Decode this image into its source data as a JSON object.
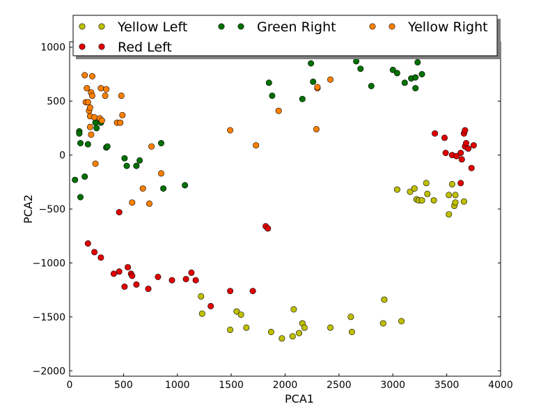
{
  "chart_data": {
    "type": "scatter",
    "title": "",
    "xlabel": "PCA1",
    "ylabel": "PCA2",
    "xlim": [
      0,
      4000
    ],
    "ylim": [
      -2050,
      1050
    ],
    "xticks": [
      0,
      500,
      1000,
      1500,
      2000,
      2500,
      3000,
      3500,
      4000
    ],
    "yticks": [
      -2000,
      -1500,
      -1000,
      -500,
      0,
      500,
      1000
    ],
    "xtick_labels": [
      "0",
      "500",
      "1000",
      "1500",
      "2000",
      "2500",
      "3000",
      "3500",
      "4000"
    ],
    "ytick_labels": [
      "−2000",
      "−1500",
      "−1000",
      "−500",
      "0",
      "500",
      "1000"
    ],
    "grid": false,
    "legend_placement": "top",
    "series": [
      {
        "name": "Yellow Left",
        "color": "#bfbf00",
        "points": [
          [
            1220,
            -1310
          ],
          [
            1230,
            -1470
          ],
          [
            1490,
            -1620
          ],
          [
            1550,
            -1450
          ],
          [
            1590,
            -1480
          ],
          [
            1640,
            -1600
          ],
          [
            1870,
            -1640
          ],
          [
            1970,
            -1700
          ],
          [
            2070,
            -1680
          ],
          [
            2080,
            -1430
          ],
          [
            2130,
            -1650
          ],
          [
            2160,
            -1560
          ],
          [
            2180,
            -1600
          ],
          [
            2420,
            -1600
          ],
          [
            2610,
            -1500
          ],
          [
            2620,
            -1640
          ],
          [
            2910,
            -1560
          ],
          [
            2920,
            -1340
          ],
          [
            3080,
            -1540
          ],
          [
            3040,
            -320
          ],
          [
            3160,
            -340
          ],
          [
            3200,
            -310
          ],
          [
            3220,
            -410
          ],
          [
            3240,
            -420
          ],
          [
            3270,
            -420
          ],
          [
            3310,
            -260
          ],
          [
            3320,
            -360
          ],
          [
            3380,
            -420
          ],
          [
            3520,
            -550
          ],
          [
            3520,
            -370
          ],
          [
            3550,
            -270
          ],
          [
            3570,
            -470
          ],
          [
            3580,
            -370
          ],
          [
            3580,
            -440
          ],
          [
            3660,
            -430
          ]
        ]
      },
      {
        "name": "Red Left",
        "color": "#e00000",
        "points": [
          [
            170,
            -820
          ],
          [
            230,
            -900
          ],
          [
            290,
            -950
          ],
          [
            410,
            -1100
          ],
          [
            460,
            -1080
          ],
          [
            460,
            -530
          ],
          [
            510,
            -1220
          ],
          [
            540,
            -1040
          ],
          [
            570,
            -1100
          ],
          [
            580,
            -1120
          ],
          [
            620,
            -1200
          ],
          [
            730,
            -1240
          ],
          [
            820,
            -1130
          ],
          [
            950,
            -1160
          ],
          [
            1080,
            -1150
          ],
          [
            1130,
            -1090
          ],
          [
            1170,
            -1160
          ],
          [
            1310,
            -1400
          ],
          [
            1490,
            -1260
          ],
          [
            1700,
            -1260
          ],
          [
            1820,
            -660
          ],
          [
            1840,
            -680
          ],
          [
            3390,
            200
          ],
          [
            3480,
            160
          ],
          [
            3490,
            20
          ],
          [
            3550,
            0
          ],
          [
            3590,
            -10
          ],
          [
            3630,
            20
          ],
          [
            3630,
            -260
          ],
          [
            3640,
            -40
          ],
          [
            3660,
            200
          ],
          [
            3670,
            230
          ],
          [
            3670,
            80
          ],
          [
            3680,
            110
          ],
          [
            3700,
            60
          ],
          [
            3730,
            -120
          ],
          [
            3750,
            90
          ]
        ]
      },
      {
        "name": "Green Right",
        "color": "#007000",
        "points": [
          [
            50,
            -230
          ],
          [
            90,
            220
          ],
          [
            90,
            200
          ],
          [
            100,
            -390
          ],
          [
            100,
            110
          ],
          [
            140,
            -200
          ],
          [
            170,
            100
          ],
          [
            240,
            300
          ],
          [
            250,
            250
          ],
          [
            290,
            300
          ],
          [
            340,
            70
          ],
          [
            350,
            80
          ],
          [
            510,
            -30
          ],
          [
            530,
            -100
          ],
          [
            620,
            -100
          ],
          [
            650,
            -50
          ],
          [
            850,
            110
          ],
          [
            870,
            -310
          ],
          [
            1070,
            -280
          ],
          [
            1850,
            670
          ],
          [
            1880,
            550
          ],
          [
            2160,
            520
          ],
          [
            2240,
            850
          ],
          [
            2260,
            680
          ],
          [
            2660,
            870
          ],
          [
            2700,
            800
          ],
          [
            2800,
            640
          ],
          [
            3000,
            790
          ],
          [
            3040,
            760
          ],
          [
            3110,
            670
          ],
          [
            3170,
            710
          ],
          [
            3210,
            720
          ],
          [
            3210,
            620
          ],
          [
            3230,
            860
          ],
          [
            3270,
            750
          ]
        ]
      },
      {
        "name": "Yellow Right",
        "color": "#ff8000",
        "points": [
          [
            140,
            740
          ],
          [
            150,
            490
          ],
          [
            160,
            620
          ],
          [
            170,
            490
          ],
          [
            180,
            410
          ],
          [
            190,
            440
          ],
          [
            190,
            360
          ],
          [
            190,
            260
          ],
          [
            200,
            190
          ],
          [
            200,
            580
          ],
          [
            210,
            550
          ],
          [
            210,
            730
          ],
          [
            230,
            350
          ],
          [
            240,
            -80
          ],
          [
            280,
            340
          ],
          [
            290,
            620
          ],
          [
            300,
            320
          ],
          [
            330,
            550
          ],
          [
            340,
            610
          ],
          [
            440,
            300
          ],
          [
            470,
            300
          ],
          [
            490,
            370
          ],
          [
            480,
            550
          ],
          [
            580,
            -440
          ],
          [
            680,
            -310
          ],
          [
            740,
            -450
          ],
          [
            760,
            80
          ],
          [
            850,
            -170
          ],
          [
            1490,
            230
          ],
          [
            1730,
            90
          ],
          [
            1940,
            410
          ],
          [
            2290,
            240
          ],
          [
            2300,
            620
          ],
          [
            2300,
            630
          ],
          [
            2420,
            700
          ]
        ]
      }
    ]
  }
}
